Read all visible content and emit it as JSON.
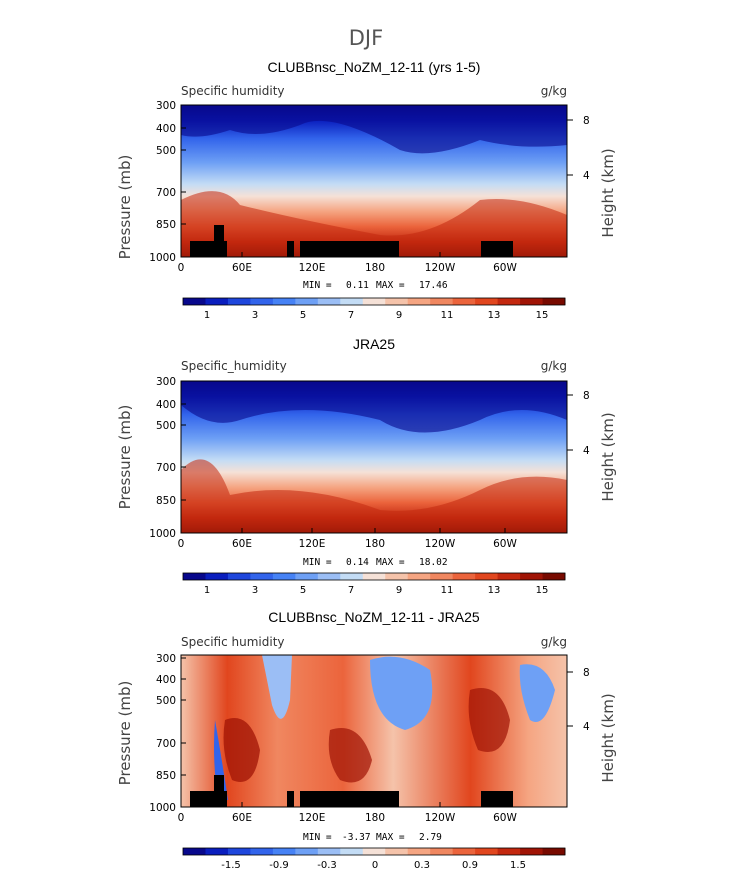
{
  "figure_title": "DJF",
  "chart_data": [
    {
      "type": "contour",
      "title": "CLUBBnsc_NoZM_12-11 (yrs 1-5)",
      "variable": "Specific humidity",
      "units": "g/kg",
      "ylabel": "Pressure (mb)",
      "ylabel2": "Height (km)",
      "x_ticks": [
        "0",
        "60E",
        "120E",
        "180",
        "120W",
        "60W"
      ],
      "y_ticks": [
        "300",
        "400",
        "500",
        "700",
        "850",
        "1000"
      ],
      "y2_ticks": [
        "8",
        "4"
      ],
      "stats": {
        "min_label": "MIN =",
        "min": "0.11",
        "max_label": "MAX =",
        "max": "17.46"
      },
      "colorbar_labels": [
        "1",
        "3",
        "5",
        "7",
        "9",
        "11",
        "13",
        "15"
      ]
    },
    {
      "type": "contour",
      "title": "JRA25",
      "variable": "Specific_humidity",
      "units": "g/kg",
      "ylabel": "Pressure (mb)",
      "ylabel2": "Height (km)",
      "x_ticks": [
        "0",
        "60E",
        "120E",
        "180",
        "120W",
        "60W"
      ],
      "y_ticks": [
        "300",
        "400",
        "500",
        "700",
        "850",
        "1000"
      ],
      "y2_ticks": [
        "8",
        "4"
      ],
      "stats": {
        "min_label": "MIN =",
        "min": "0.14",
        "max_label": "MAX =",
        "max": "18.02"
      },
      "colorbar_labels": [
        "1",
        "3",
        "5",
        "7",
        "9",
        "11",
        "13",
        "15"
      ]
    },
    {
      "type": "contour",
      "title": "CLUBBnsc_NoZM_12-11 - JRA25",
      "variable": "Specific humidity",
      "units": "g/kg",
      "ylabel": "Pressure (mb)",
      "ylabel2": "Height (km)",
      "x_ticks": [
        "0",
        "60E",
        "120E",
        "180",
        "120W",
        "60W"
      ],
      "y_ticks": [
        "300",
        "400",
        "500",
        "700",
        "850",
        "1000"
      ],
      "y2_ticks": [
        "8",
        "4"
      ],
      "stats": {
        "min_label": "MIN =",
        "min": "-3.37",
        "max_label": "MAX =",
        "max": "2.79"
      },
      "colorbar_labels": [
        "-1.5",
        "-0.9",
        "-0.3",
        "0",
        "0.3",
        "0.9",
        "1.5"
      ]
    }
  ],
  "colors": {
    "scale": [
      "#08088c",
      "#0a1ebe",
      "#1e46dc",
      "#3264eb",
      "#4682f5",
      "#6ea0f5",
      "#9bbef5",
      "#c3dcf5",
      "#f5e1d7",
      "#f5c3aa",
      "#f5a582",
      "#f08760",
      "#eb643c",
      "#e1461e",
      "#c3280f",
      "#a01405",
      "#780a00"
    ],
    "land": "#000000",
    "frame": "#000000"
  }
}
